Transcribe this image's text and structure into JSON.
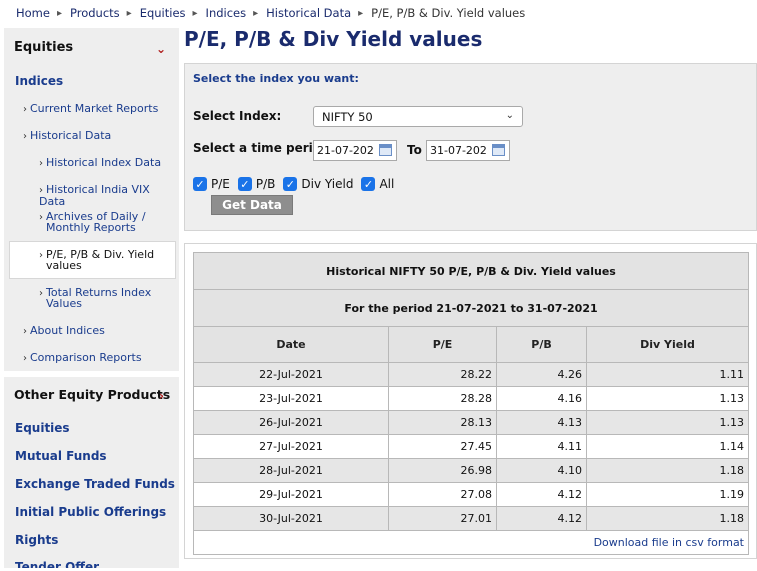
{
  "breadcrumb": [
    "Home",
    "Products",
    "Equities",
    "Indices",
    "Historical Data",
    "P/E, P/B & Div. Yield values"
  ],
  "sidebar": {
    "section_title": "Equities",
    "category": "Indices",
    "items": {
      "current_market_reports": "Current Market Reports",
      "historical_data": "Historical Data",
      "historical_index_data": "Historical Index Data",
      "historical_vix_data": "Historical India VIX Data",
      "archives_line1": "Archives of Daily /",
      "archives_line2": "Monthly Reports",
      "pe_line1": "P/E, P/B & Div. Yield",
      "pe_line2": "values",
      "tri_line1": "Total Returns Index",
      "tri_line2": "Values",
      "about_indices": "About Indices",
      "comparison_reports": "Comparison Reports"
    },
    "other_title": "Other Equity Products",
    "other_items": [
      "Equities",
      "Mutual Funds",
      "Exchange Traded Funds",
      "Initial Public Offerings",
      "Rights",
      "Tender Offer"
    ]
  },
  "page_title": "P/E, P/B & Div Yield values",
  "form": {
    "hint": "Select the index you want:",
    "index_label": "Select Index:",
    "index_value": "NIFTY 50",
    "period_label": "Select a time period:",
    "from_date": "21-07-202",
    "to_label": "To",
    "to_date": "31-07-202",
    "checkboxes": [
      "P/E",
      "P/B",
      "Div Yield",
      "All"
    ],
    "button": "Get Data"
  },
  "results": {
    "title": "Historical NIFTY 50 P/E, P/B & Div. Yield values",
    "period": "For the period 21-07-2021 to 31-07-2021",
    "columns": [
      "Date",
      "P/E",
      "P/B",
      "Div Yield"
    ],
    "rows": [
      [
        "22-Jul-2021",
        "28.22",
        "4.26",
        "1.11"
      ],
      [
        "23-Jul-2021",
        "28.28",
        "4.16",
        "1.13"
      ],
      [
        "26-Jul-2021",
        "28.13",
        "4.13",
        "1.13"
      ],
      [
        "27-Jul-2021",
        "27.45",
        "4.11",
        "1.14"
      ],
      [
        "28-Jul-2021",
        "26.98",
        "4.10",
        "1.18"
      ],
      [
        "29-Jul-2021",
        "27.08",
        "4.12",
        "1.19"
      ],
      [
        "30-Jul-2021",
        "27.01",
        "4.12",
        "1.18"
      ]
    ],
    "download": "Download file in csv format"
  },
  "colors": {
    "accent": "#1a3c8d",
    "chevron": "#b0201f",
    "checkbox": "#1a73e8"
  },
  "icons": [
    "chevron-down-icon",
    "chevron-right-icon",
    "calendar-icon",
    "checkbox-checked-icon"
  ]
}
